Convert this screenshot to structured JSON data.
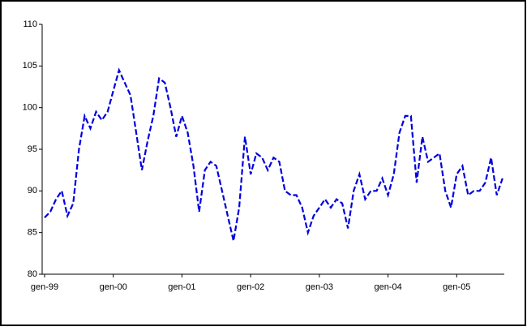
{
  "chart_data": {
    "type": "line",
    "categories": [
      "gen-99",
      null,
      null,
      null,
      null,
      null,
      null,
      null,
      null,
      null,
      null,
      null,
      "gen-00",
      null,
      null,
      null,
      null,
      null,
      null,
      null,
      null,
      null,
      null,
      null,
      "gen-01",
      null,
      null,
      null,
      null,
      null,
      null,
      null,
      null,
      null,
      null,
      null,
      "gen-02",
      null,
      null,
      null,
      null,
      null,
      null,
      null,
      null,
      null,
      null,
      null,
      "gen-03",
      null,
      null,
      null,
      null,
      null,
      null,
      null,
      null,
      null,
      null,
      null,
      "gen-04",
      null,
      null,
      null,
      null,
      null,
      null,
      null,
      null,
      null,
      null,
      null,
      "gen-05",
      null,
      null,
      null,
      null,
      null,
      null,
      null,
      null
    ],
    "values": [
      86.8,
      87.5,
      89,
      90,
      87,
      88.5,
      95,
      99,
      97.5,
      99.5,
      98.5,
      99.5,
      102,
      104.5,
      103,
      101.5,
      97,
      92.5,
      96,
      99,
      103.5,
      103,
      100,
      96.5,
      99,
      97,
      93,
      87.5,
      92.5,
      93.5,
      93,
      90,
      87,
      84,
      88,
      96.5,
      92,
      94.5,
      94,
      92.5,
      94,
      93.5,
      90,
      89.5,
      89.5,
      88,
      85,
      87,
      88,
      89,
      88,
      89,
      88.5,
      85.5,
      90,
      92,
      89,
      90,
      90,
      91.5,
      89.5,
      92,
      97,
      99,
      99,
      91,
      96.5,
      93.5,
      94,
      94.5,
      90,
      88,
      92,
      93,
      89.5,
      90,
      90,
      91,
      94,
      89.5,
      91.5
    ],
    "color": "#0000dd",
    "ylim": [
      80,
      110
    ],
    "yticks": [
      80,
      85,
      90,
      95,
      100,
      105,
      110
    ],
    "grid": false
  }
}
